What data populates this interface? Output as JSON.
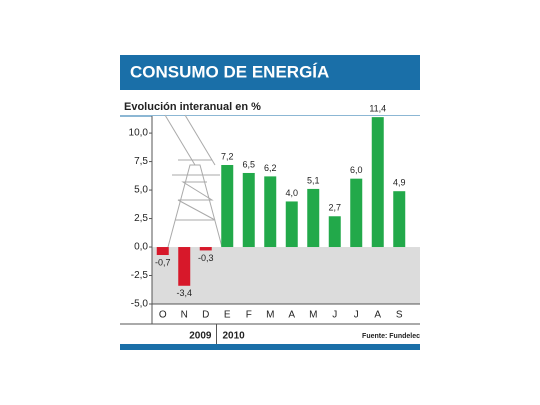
{
  "chart_data": {
    "type": "bar",
    "title": "CONSUMO DE ENERGÍA",
    "subtitle": "Evolución interanual en %",
    "categories": [
      "O",
      "N",
      "D",
      "E",
      "F",
      "M",
      "A",
      "M",
      "J",
      "J",
      "A",
      "S"
    ],
    "values": [
      -0.7,
      -3.4,
      -0.3,
      7.2,
      6.5,
      6.2,
      4.0,
      5.1,
      2.7,
      6.0,
      11.4,
      4.9
    ],
    "value_labels": [
      "-0,7",
      "-3,4",
      "-0,3",
      "7,2",
      "6,5",
      "6,2",
      "4,0",
      "5,1",
      "2,7",
      "6,0",
      "11,4",
      "4,9"
    ],
    "positive_color": "#22a94a",
    "negative_color": "#d7182a",
    "ylim": [
      -5,
      11.5
    ],
    "yticks": [
      {
        "value": -5,
        "label": "-5,0"
      },
      {
        "value": -2.5,
        "label": "-2,5"
      },
      {
        "value": 0,
        "label": "0,0"
      },
      {
        "value": 2.5,
        "label": "2,5"
      },
      {
        "value": 5,
        "label": "5,0"
      },
      {
        "value": 7.5,
        "label": "7,5"
      },
      {
        "value": 10,
        "label": "10,0"
      }
    ],
    "years": [
      {
        "label": "2009",
        "count": 3
      },
      {
        "label": "2010",
        "count": 9
      }
    ],
    "source": "Fuente: Fundelec"
  }
}
